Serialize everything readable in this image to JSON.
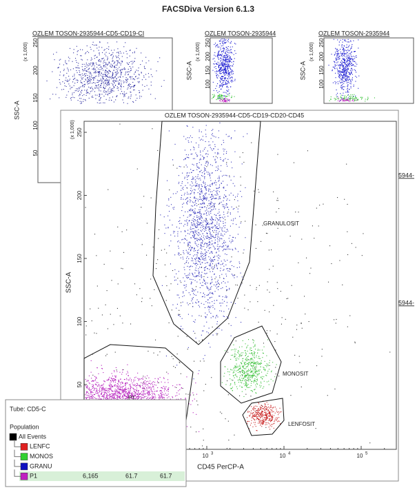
{
  "header": {
    "title": "FACSDiva Version 6.1.3"
  },
  "small_plots": [
    {
      "title": "OZLEM TOSON-2935944-CD5-CD19-CI",
      "y_label": "SSC-A",
      "y_unit": "(x 1,000)",
      "yticks": [
        "250",
        "200",
        "150",
        "100",
        "50"
      ]
    },
    {
      "title": "OZLEM TOSON-2935944",
      "y_label": "SSC-A",
      "y_unit": "(x 1,000)",
      "yticks": [
        "250",
        "200",
        "150",
        "100"
      ]
    },
    {
      "title": "OZLEM TOSON-2935944",
      "y_label": "SSC-A",
      "y_unit": "(x 1,000)",
      "yticks": [
        "250",
        "200",
        "150",
        "100"
      ]
    }
  ],
  "main_plot": {
    "title": "OZLEM TOSON-2935944-CD5-CD19-CD20-CD45",
    "y_label": "SSC-A",
    "y_unit": "(x 1,000)",
    "yticks": [
      "250",
      "200",
      "150",
      "100",
      "50"
    ],
    "x_label": "CD45 PerCP-A",
    "xticks": [
      {
        "base": "10",
        "exp": "2"
      },
      {
        "base": "10",
        "exp": "3"
      },
      {
        "base": "10",
        "exp": "4"
      },
      {
        "base": "10",
        "exp": "5"
      }
    ],
    "gates": [
      "GRANULOSIT",
      "MONOSIT",
      "LENFOSIT",
      "P1"
    ]
  },
  "side_fragments": [
    "5944-",
    "5944-"
  ],
  "tube_panel": {
    "tube": "Tube: CD5-C",
    "population_header": "Population",
    "populations": [
      {
        "name": "All Events",
        "color": "#000000"
      },
      {
        "name": "LENFC",
        "color": "#e02020"
      },
      {
        "name": "MONOS",
        "color": "#30d030"
      },
      {
        "name": "GRANU",
        "color": "#1010c0"
      },
      {
        "name": "P1",
        "color": "#c020c0"
      }
    ],
    "p1_stats": [
      "6,165",
      "61.7",
      "61.7"
    ]
  }
}
